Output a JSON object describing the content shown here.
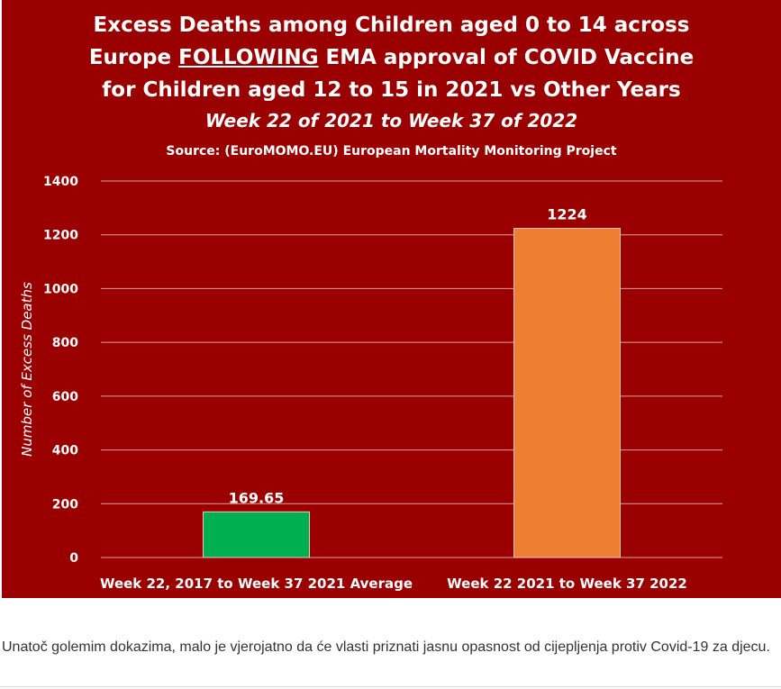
{
  "chart_data": {
    "type": "bar",
    "title_parts": [
      {
        "text": "Excess Deaths among Children aged 0 to 14 across",
        "underline": false,
        "br": true
      },
      {
        "text": "Europe ",
        "underline": false,
        "br": false
      },
      {
        "text": "FOLLOWING",
        "underline": true,
        "br": false
      },
      {
        "text": " EMA approval of COVID Vaccine",
        "underline": false,
        "br": true
      },
      {
        "text": "for Children aged 12 to 15 in 2021 vs Other Years",
        "underline": false,
        "br": false
      }
    ],
    "subtitle": "Week 22 of 2021 to Week 37 of 2022",
    "source": "Source: (EuroMOMO.EU) European Mortality Monitoring Project",
    "categories": [
      "Week 22, 2017 to Week 37 2021 Average",
      "Week 22 2021 to Week 37 2022"
    ],
    "values": [
      169.65,
      1224
    ],
    "data_labels": [
      "169.65",
      "1224"
    ],
    "bar_colors": [
      "#00b050",
      "#ed7d31"
    ],
    "ylabel": "Number of Excess Deaths",
    "xlabel": "",
    "ylim": [
      0,
      1400
    ],
    "yticks": [
      0,
      200,
      400,
      600,
      800,
      1000,
      1200,
      1400
    ],
    "grid": true,
    "background": "#9b0000",
    "grid_color": "#d9a3a3"
  },
  "caption": "Unatoč golemim dokazima, malo je vjerojatno da će vlasti priznati jasnu opasnost od cijepljenja protiv Covid-19 za djecu."
}
